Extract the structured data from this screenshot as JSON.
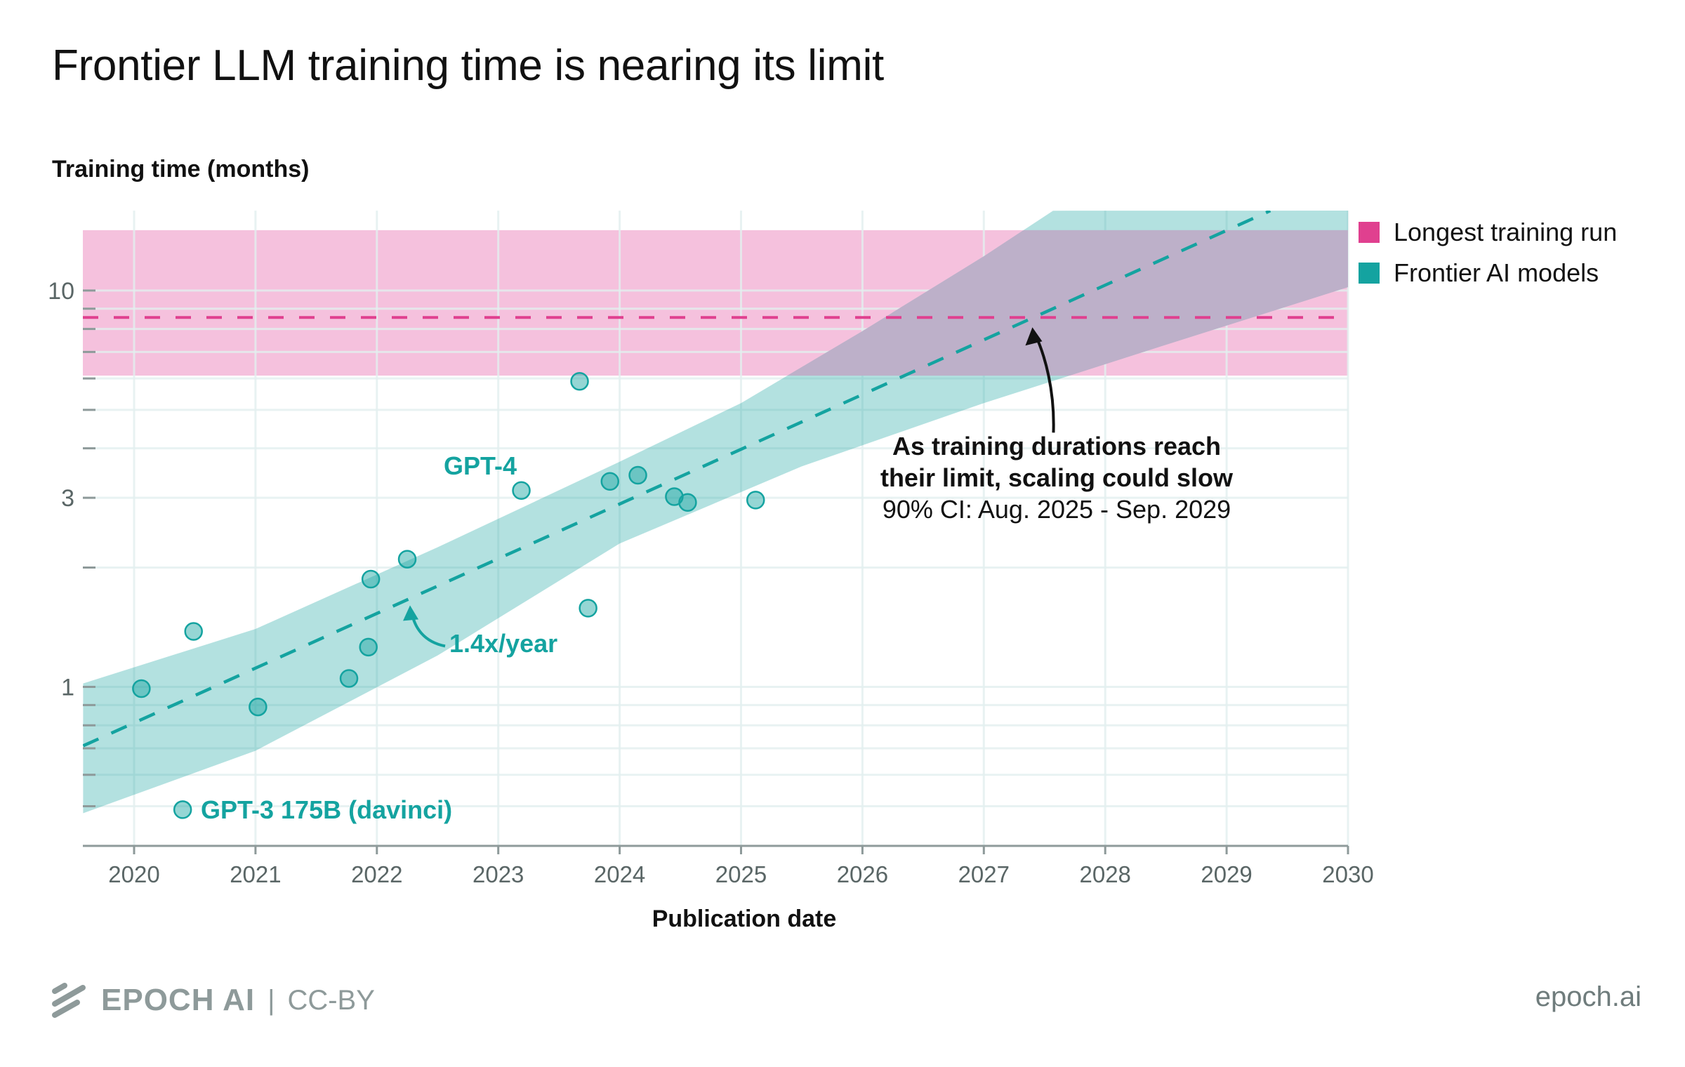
{
  "title": "Frontier LLM training time is nearing its limit",
  "footer": {
    "brand": "EPOCH AI",
    "separator": "|",
    "license": "CC-BY",
    "url": "epoch.ai"
  },
  "colors": {
    "pink": "#e0408f",
    "pink_band": "#f5c1dd",
    "teal": "#14a3a0",
    "teal_band": "#b2e4e2",
    "overlap": "#bdb0c9",
    "grid": "#e2efef",
    "axis": "#8e9a9a"
  },
  "chart_data": {
    "type": "scatter",
    "title": "Frontier LLM training time is nearing its limit",
    "xlabel": "Publication date",
    "ylabel": "Training time (months)",
    "y_scale": "log",
    "xlim": [
      2019.58,
      2030
    ],
    "ylim": [
      0.4,
      15.9
    ],
    "grid": true,
    "x_ticks": [
      2020,
      2021,
      2022,
      2023,
      2024,
      2025,
      2026,
      2027,
      2028,
      2029,
      2030
    ],
    "x_tick_labels": [
      "2020",
      "2021",
      "2022",
      "2023",
      "2024",
      "2025",
      "2026",
      "2027",
      "2028",
      "2029",
      "2030"
    ],
    "y_ticks_major": [
      1,
      3,
      10
    ],
    "y_tick_labels": [
      "1",
      "3",
      "10"
    ],
    "y_ticks_minor": [
      0.5,
      0.6,
      0.7,
      0.8,
      0.9,
      2,
      4,
      5,
      6,
      7,
      8,
      9
    ],
    "legend": {
      "position": "right",
      "entries": [
        {
          "label": "Longest training run",
          "color": "#e0408f"
        },
        {
          "label": "Frontier AI models",
          "color": "#14a3a0"
        }
      ]
    },
    "series": [
      {
        "name": "Frontier AI models",
        "kind": "scatter",
        "points": [
          {
            "x": 2020.06,
            "y": 0.99
          },
          {
            "x": 2020.4,
            "y": 0.49,
            "label": "GPT-3 175B (davinci)"
          },
          {
            "x": 2020.49,
            "y": 1.38
          },
          {
            "x": 2021.02,
            "y": 0.89
          },
          {
            "x": 2021.77,
            "y": 1.05
          },
          {
            "x": 2021.93,
            "y": 1.26
          },
          {
            "x": 2021.95,
            "y": 1.87
          },
          {
            "x": 2022.25,
            "y": 2.1
          },
          {
            "x": 2023.19,
            "y": 3.13,
            "label": "GPT-4"
          },
          {
            "x": 2023.67,
            "y": 5.9
          },
          {
            "x": 2023.74,
            "y": 1.58
          },
          {
            "x": 2023.92,
            "y": 3.3
          },
          {
            "x": 2024.15,
            "y": 3.42
          },
          {
            "x": 2024.45,
            "y": 3.02
          },
          {
            "x": 2024.56,
            "y": 2.92
          },
          {
            "x": 2025.12,
            "y": 2.96
          }
        ]
      },
      {
        "name": "Frontier AI models trend",
        "kind": "line-dashed",
        "growth_label": "1.4x/year",
        "points": [
          {
            "x": 2019.58,
            "y": 0.71
          },
          {
            "x": 2029.36,
            "y": 15.9
          }
        ],
        "ci_band": {
          "lower": [
            {
              "x": 2019.58,
              "y": 0.48
            },
            {
              "x": 2021.0,
              "y": 0.69
            },
            {
              "x": 2022.5,
              "y": 1.2
            },
            {
              "x": 2024.0,
              "y": 2.3
            },
            {
              "x": 2025.5,
              "y": 3.6
            },
            {
              "x": 2027.0,
              "y": 5.2
            },
            {
              "x": 2028.5,
              "y": 7.3
            },
            {
              "x": 2030,
              "y": 10.2
            }
          ],
          "upper": [
            {
              "x": 2019.58,
              "y": 1.02
            },
            {
              "x": 2021.0,
              "y": 1.4
            },
            {
              "x": 2022.5,
              "y": 2.25
            },
            {
              "x": 2024.0,
              "y": 3.7
            },
            {
              "x": 2025.0,
              "y": 5.2
            },
            {
              "x": 2026.0,
              "y": 7.9
            },
            {
              "x": 2027.0,
              "y": 12.2
            },
            {
              "x": 2027.57,
              "y": 15.9
            }
          ]
        }
      },
      {
        "name": "Longest training run",
        "kind": "hline-dashed",
        "value": 8.55,
        "band": [
          6.1,
          14.2
        ]
      }
    ],
    "annotations": [
      {
        "text_bold": [
          "As training durations reach",
          "their limit, scaling could slow"
        ],
        "text": "90% CI: Aug. 2025 - Sep. 2029",
        "arrow_to": {
          "x": 2027.4,
          "y": 8.55
        }
      },
      {
        "text": "1.4x/year",
        "arrow_to": {
          "x": 2022.25,
          "y": 1.7
        }
      },
      {
        "text": "GPT-4",
        "point": {
          "x": 2023.19,
          "y": 3.13
        }
      },
      {
        "text": "GPT-3 175B (davinci)",
        "point": {
          "x": 2020.4,
          "y": 0.49
        }
      }
    ]
  }
}
